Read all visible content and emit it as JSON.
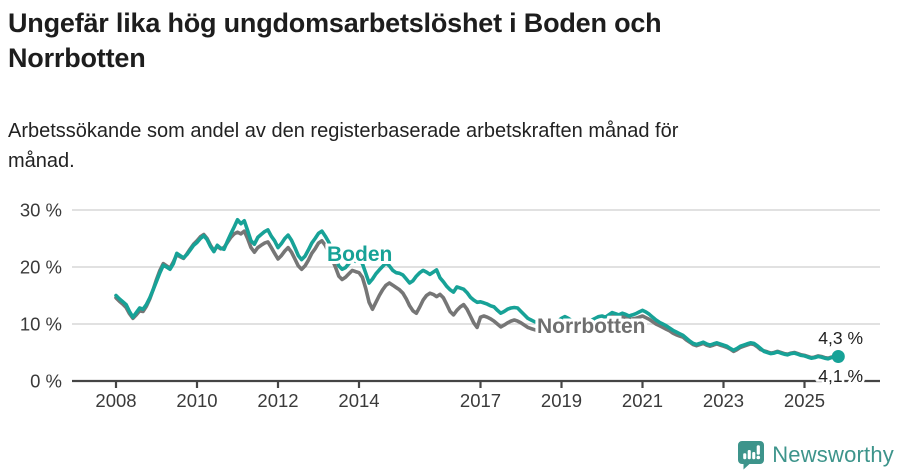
{
  "header": {
    "title_lines": [
      "Ungefär lika hög ungdomsarbetslöshet i Boden och",
      "Norrbotten"
    ],
    "subtitle_lines": [
      "Arbetssökande som andel av den registerbaserade arbetskraften månad för",
      "månad."
    ]
  },
  "chart_data": {
    "type": "line",
    "unit": "%",
    "x_start": "2008-01",
    "x_end": "2025-11",
    "x_step": "1 month",
    "grid": "horizontal",
    "ylim": [
      0,
      32
    ],
    "y_ticks": [
      {
        "label": "0 %",
        "value": 0
      },
      {
        "label": "10 %",
        "value": 10
      },
      {
        "label": "20 %",
        "value": 20
      },
      {
        "label": "30 %",
        "value": 30
      }
    ],
    "x_ticks": [
      {
        "label": "2008",
        "year": 2008
      },
      {
        "label": "2010",
        "year": 2010
      },
      {
        "label": "2012",
        "year": 2012
      },
      {
        "label": "2014",
        "year": 2014
      },
      {
        "label": "2017",
        "year": 2017
      },
      {
        "label": "2019",
        "year": 2019
      },
      {
        "label": "2021",
        "year": 2021
      },
      {
        "label": "2023",
        "year": 2023
      },
      {
        "label": "2025",
        "year": 2025
      }
    ],
    "series": [
      {
        "name": "Norrbotten",
        "color": "#767676",
        "end_label": "4,1 %",
        "values": [
          14.6,
          14.0,
          13.5,
          12.9,
          11.8,
          11.0,
          11.6,
          12.3,
          12.2,
          13.1,
          14.4,
          16.0,
          17.8,
          19.4,
          20.6,
          20.2,
          19.8,
          20.9,
          22.2,
          21.8,
          21.5,
          22.3,
          23.2,
          24.0,
          24.6,
          25.3,
          25.7,
          25.0,
          23.8,
          22.9,
          23.6,
          23.2,
          23.4,
          24.3,
          25.2,
          25.8,
          26.1,
          25.8,
          26.3,
          25.0,
          23.4,
          22.6,
          23.4,
          23.8,
          24.2,
          24.4,
          23.4,
          22.4,
          21.4,
          22.0,
          22.8,
          23.4,
          22.6,
          21.4,
          20.2,
          19.6,
          20.2,
          21.2,
          22.4,
          23.2,
          24.2,
          24.6,
          23.8,
          22.6,
          21.4,
          20.0,
          18.4,
          17.8,
          18.2,
          18.8,
          19.4,
          19.2,
          19.0,
          18.2,
          16.2,
          13.8,
          12.6,
          13.8,
          15.0,
          16.0,
          16.8,
          17.2,
          16.8,
          16.4,
          16.0,
          15.4,
          14.4,
          13.2,
          12.3,
          11.9,
          13.0,
          14.2,
          15.0,
          15.4,
          15.2,
          14.8,
          15.2,
          14.6,
          13.4,
          12.2,
          11.6,
          12.4,
          13.0,
          13.4,
          12.6,
          11.4,
          10.2,
          9.4,
          11.2,
          11.4,
          11.2,
          10.9,
          10.5,
          10.0,
          9.5,
          9.8,
          10.2,
          10.5,
          10.7,
          10.5,
          10.2,
          9.8,
          9.4,
          9.2,
          9.0,
          8.8,
          8.7,
          8.6,
          8.5,
          8.7,
          8.9,
          9.2,
          9.5,
          9.8,
          9.6,
          9.3,
          9.0,
          9.2,
          9.5,
          9.4,
          9.2,
          9.5,
          9.8,
          10.1,
          10.6,
          10.4,
          10.9,
          11.4,
          11.2,
          11.0,
          11.3,
          11.1,
          10.8,
          10.9,
          11.0,
          11.2,
          11.4,
          11.1,
          10.8,
          10.4,
          10.0,
          9.7,
          9.4,
          9.1,
          8.8,
          8.4,
          8.1,
          7.9,
          7.7,
          7.2,
          6.8,
          6.4,
          6.2,
          6.4,
          6.6,
          6.3,
          6.1,
          6.3,
          6.5,
          6.3,
          6.1,
          5.9,
          5.6,
          5.2,
          5.5,
          5.9,
          6.1,
          6.3,
          6.5,
          6.4,
          6.0,
          5.5,
          5.3,
          5.1,
          4.9,
          5.0,
          5.2,
          5.0,
          4.8,
          4.7,
          4.9,
          5.0,
          4.8,
          4.6,
          4.5,
          4.3,
          4.1,
          4.2,
          4.4,
          4.3,
          4.1,
          4.0,
          4.2,
          4.2,
          4.1
        ]
      },
      {
        "name": "Boden",
        "color": "#17a297",
        "end_label": "4,3 %",
        "end_dot": true,
        "values": [
          15.0,
          14.4,
          13.9,
          13.4,
          12.2,
          11.2,
          12.0,
          12.8,
          12.6,
          13.4,
          14.6,
          16.0,
          17.5,
          19.0,
          20.3,
          20.0,
          19.6,
          20.6,
          22.4,
          22.0,
          21.6,
          22.2,
          23.0,
          23.8,
          24.3,
          25.0,
          25.5,
          24.8,
          23.6,
          22.7,
          23.8,
          23.3,
          23.1,
          24.5,
          25.8,
          27.0,
          28.3,
          27.6,
          28.1,
          26.4,
          24.6,
          24.0,
          25.2,
          25.7,
          26.2,
          26.5,
          25.4,
          24.6,
          23.4,
          24.1,
          25.0,
          25.6,
          24.7,
          23.4,
          22.0,
          21.3,
          21.9,
          23.0,
          24.2,
          25.0,
          25.9,
          26.3,
          25.4,
          24.4,
          23.2,
          21.8,
          20.2,
          19.6,
          19.9,
          20.6,
          21.3,
          21.0,
          21.2,
          20.6,
          18.9,
          17.2,
          17.9,
          18.8,
          19.5,
          20.1,
          20.7,
          20.2,
          19.4,
          19.0,
          18.9,
          18.6,
          17.9,
          17.2,
          17.6,
          18.4,
          19.0,
          19.4,
          19.1,
          18.7,
          19.1,
          19.5,
          18.1,
          17.4,
          16.6,
          16.0,
          15.6,
          16.5,
          16.3,
          16.1,
          15.5,
          14.7,
          14.2,
          13.8,
          13.9,
          13.7,
          13.5,
          13.2,
          13.0,
          12.4,
          11.9,
          12.2,
          12.6,
          12.8,
          12.9,
          12.8,
          12.2,
          11.6,
          11.0,
          10.7,
          10.4,
          10.2,
          10.0,
          9.9,
          9.8,
          10.0,
          10.2,
          10.5,
          11.0,
          11.3,
          11.0,
          10.6,
          10.2,
          10.5,
          10.8,
          10.6,
          10.4,
          10.7,
          11.0,
          11.3,
          11.4,
          11.2,
          11.6,
          12.0,
          11.8,
          11.6,
          11.9,
          11.7,
          11.4,
          11.6,
          11.8,
          12.1,
          12.4,
          12.1,
          11.7,
          11.2,
          10.7,
          10.3,
          10.0,
          9.7,
          9.3,
          8.9,
          8.6,
          8.3,
          8.0,
          7.5,
          7.0,
          6.6,
          6.4,
          6.6,
          6.8,
          6.5,
          6.3,
          6.5,
          6.7,
          6.5,
          6.3,
          6.1,
          5.7,
          5.4,
          5.7,
          6.1,
          6.3,
          6.5,
          6.7,
          6.6,
          6.2,
          5.7,
          5.2,
          5.0,
          4.8,
          4.9,
          5.1,
          4.9,
          4.7,
          4.6,
          4.8,
          4.9,
          4.7,
          4.5,
          4.4,
          4.2,
          4.0,
          4.1,
          4.3,
          4.2,
          4.0,
          3.9,
          4.1,
          4.2,
          4.3
        ]
      }
    ]
  },
  "footer": {
    "brand": "Newsworthy",
    "brand_color": "#3d948b",
    "logo_icon": "newsworthy-speech-bubble-bar-chart-icon"
  }
}
